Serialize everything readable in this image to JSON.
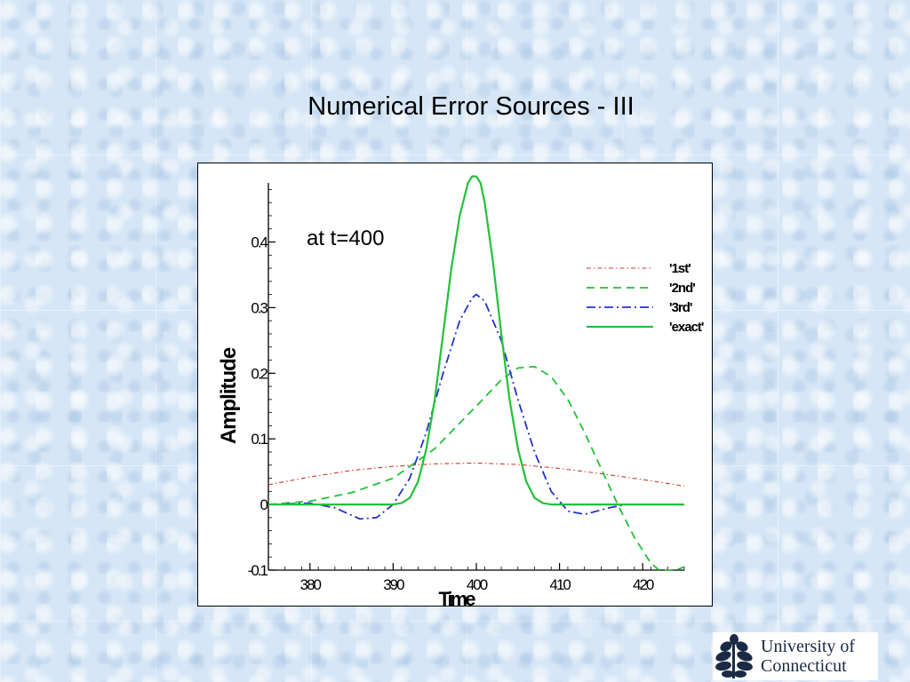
{
  "slide": {
    "title": "Numerical Error Sources - III"
  },
  "logo": {
    "line1": "University of",
    "line2": "Connecticut",
    "icon": "oak-leaf-icon"
  },
  "chart_data": {
    "type": "line",
    "annotation": "at t=400",
    "xlabel": "Time",
    "ylabel": "Amplitude",
    "xlim": [
      375,
      425
    ],
    "ylim": [
      -0.1,
      0.49
    ],
    "x_ticks": [
      380,
      390,
      400,
      410,
      420
    ],
    "x_tick_labels": [
      "380",
      "390",
      "400",
      "410",
      "420"
    ],
    "y_ticks": [
      -0.1,
      0,
      0.1,
      0.2,
      0.3,
      0.4
    ],
    "y_tick_labels": [
      "-0.1",
      "0",
      "0.1",
      "0.2",
      "0.3",
      "0.4"
    ],
    "legend_position": "right",
    "series": [
      {
        "name": "'1st'",
        "color": "#d03a2a",
        "style": "dashdot-fine",
        "points": [
          [
            375,
            0.03
          ],
          [
            380,
            0.042
          ],
          [
            385,
            0.052
          ],
          [
            390,
            0.058
          ],
          [
            395,
            0.062
          ],
          [
            400,
            0.063
          ],
          [
            405,
            0.061
          ],
          [
            410,
            0.055
          ],
          [
            415,
            0.047
          ],
          [
            420,
            0.038
          ],
          [
            425,
            0.028
          ]
        ]
      },
      {
        "name": "'2nd'",
        "color": "#22c13a",
        "style": "dashed",
        "points": [
          [
            375,
            0.0
          ],
          [
            380,
            0.005
          ],
          [
            385,
            0.018
          ],
          [
            390,
            0.04
          ],
          [
            395,
            0.085
          ],
          [
            400,
            0.15
          ],
          [
            403,
            0.19
          ],
          [
            405,
            0.208
          ],
          [
            407,
            0.21
          ],
          [
            409,
            0.195
          ],
          [
            411,
            0.16
          ],
          [
            413,
            0.11
          ],
          [
            415,
            0.055
          ],
          [
            417,
            0.0
          ],
          [
            419,
            -0.05
          ],
          [
            421,
            -0.09
          ],
          [
            422,
            -0.1
          ],
          [
            423,
            -0.108
          ],
          [
            424,
            -0.105
          ],
          [
            425,
            -0.095
          ]
        ]
      },
      {
        "name": "'3rd'",
        "color": "#2233c8",
        "style": "dashdot",
        "points": [
          [
            375,
            0.0
          ],
          [
            380,
            0.002
          ],
          [
            383,
            -0.005
          ],
          [
            386,
            -0.022
          ],
          [
            388,
            -0.02
          ],
          [
            390,
            0.0
          ],
          [
            392,
            0.04
          ],
          [
            394,
            0.11
          ],
          [
            396,
            0.2
          ],
          [
            398,
            0.28
          ],
          [
            399.5,
            0.315
          ],
          [
            400,
            0.32
          ],
          [
            401,
            0.31
          ],
          [
            403,
            0.25
          ],
          [
            405,
            0.16
          ],
          [
            407,
            0.08
          ],
          [
            409,
            0.02
          ],
          [
            411,
            -0.01
          ],
          [
            413,
            -0.015
          ],
          [
            416,
            -0.005
          ],
          [
            418,
            0.0
          ],
          [
            425,
            0.0
          ]
        ]
      },
      {
        "name": "'exact'",
        "color": "#22c13a",
        "style": "solid",
        "points": [
          [
            375,
            0.0
          ],
          [
            390,
            0.0
          ],
          [
            391,
            0.002
          ],
          [
            392,
            0.01
          ],
          [
            393,
            0.035
          ],
          [
            394,
            0.085
          ],
          [
            395,
            0.16
          ],
          [
            396,
            0.26
          ],
          [
            397,
            0.36
          ],
          [
            398,
            0.44
          ],
          [
            399,
            0.49
          ],
          [
            399.5,
            0.5
          ],
          [
            400,
            0.5
          ],
          [
            400.5,
            0.49
          ],
          [
            401,
            0.46
          ],
          [
            402,
            0.37
          ],
          [
            403,
            0.26
          ],
          [
            404,
            0.16
          ],
          [
            405,
            0.085
          ],
          [
            406,
            0.035
          ],
          [
            407,
            0.01
          ],
          [
            408,
            0.002
          ],
          [
            409,
            0.0
          ],
          [
            425,
            0.0
          ]
        ]
      }
    ]
  }
}
